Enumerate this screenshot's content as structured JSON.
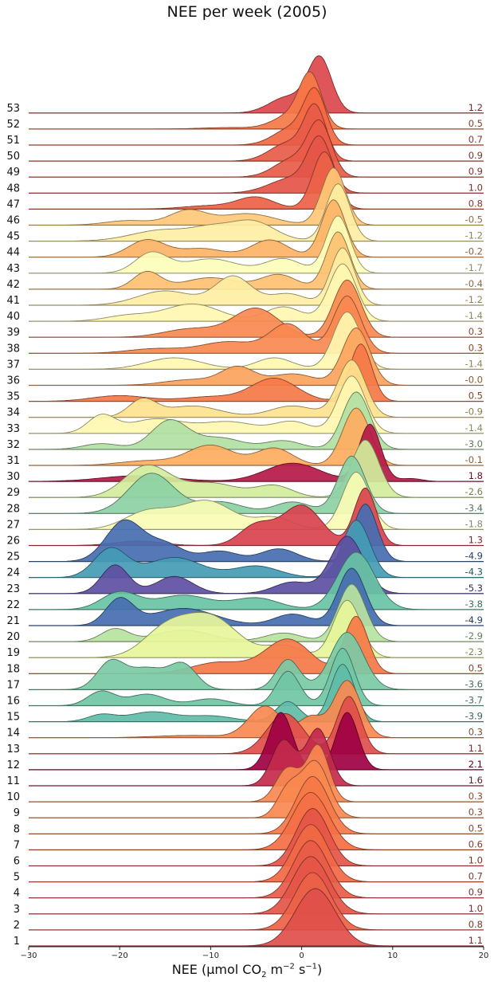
{
  "chart_data": {
    "type": "area",
    "title": "NEE per week (2005)",
    "xlabel_parts": {
      "a": "NEE (μmol CO",
      "b": "2",
      "c": " m",
      "d": "−2",
      "e": " s",
      "f": "−1",
      "g": ")"
    },
    "xlim": [
      -30,
      20
    ],
    "xticks": [
      "−30",
      "−20",
      "−10",
      "0",
      "10",
      "20"
    ],
    "xtick_values": [
      -30,
      -20,
      -10,
      0,
      10,
      20
    ],
    "colorscale": "Spectral",
    "value_range": [
      -5.3,
      2.1
    ],
    "series": [
      {
        "name": "1",
        "mean": "1.1",
        "value": 1.1,
        "peaks": [
          [
            1.5,
            2.2,
            1
          ]
        ]
      },
      {
        "name": "2",
        "mean": "0.8",
        "value": 0.8,
        "peaks": [
          [
            1.2,
            2.0,
            1
          ]
        ]
      },
      {
        "name": "3",
        "mean": "1.0",
        "value": 1.0,
        "peaks": [
          [
            1.0,
            2.0,
            1
          ]
        ]
      },
      {
        "name": "4",
        "mean": "0.9",
        "value": 0.9,
        "peaks": [
          [
            1.0,
            1.9,
            1
          ]
        ]
      },
      {
        "name": "5",
        "mean": "0.7",
        "value": 0.7,
        "peaks": [
          [
            1.0,
            1.9,
            1
          ]
        ]
      },
      {
        "name": "6",
        "mean": "1.0",
        "value": 1.0,
        "peaks": [
          [
            1.2,
            1.8,
            1
          ]
        ]
      },
      {
        "name": "7",
        "mean": "0.6",
        "value": 0.6,
        "peaks": [
          [
            1.0,
            2.0,
            1
          ]
        ]
      },
      {
        "name": "8",
        "mean": "0.5",
        "value": 0.5,
        "peaks": [
          [
            1.2,
            1.8,
            1
          ]
        ]
      },
      {
        "name": "9",
        "mean": "0.3",
        "value": 0.3,
        "peaks": [
          [
            1.5,
            1.5,
            1
          ],
          [
            -1.5,
            1.2,
            0.5
          ]
        ]
      },
      {
        "name": "10",
        "mean": "0.3",
        "value": 0.3,
        "peaks": [
          [
            1.8,
            1.2,
            1
          ],
          [
            -1.5,
            1.3,
            0.6
          ]
        ]
      },
      {
        "name": "11",
        "mean": "1.6",
        "value": 1.6,
        "peaks": [
          [
            1.8,
            1.3,
            1
          ],
          [
            -2.0,
            1.3,
            0.8
          ]
        ]
      },
      {
        "name": "12",
        "mean": "2.1",
        "value": 2.1,
        "peaks": [
          [
            5.0,
            1.2,
            1
          ],
          [
            -2.3,
            1.3,
            1
          ]
        ]
      },
      {
        "name": "13",
        "mean": "1.1",
        "value": 1.1,
        "peaks": [
          [
            5.2,
            1.3,
            1
          ],
          [
            -1.8,
            2.0,
            0.7
          ]
        ]
      },
      {
        "name": "14",
        "mean": "0.3",
        "value": 0.3,
        "peaks": [
          [
            5.0,
            1.5,
            1
          ],
          [
            -4.0,
            1.8,
            0.55
          ],
          [
            1.0,
            1.3,
            0.35
          ],
          [
            -12.0,
            4.0,
            0.04
          ]
        ]
      },
      {
        "name": "15",
        "mean": "-3.9",
        "value": -3.9,
        "peaks": [
          [
            4.5,
            1.3,
            1
          ],
          [
            -1.5,
            1.3,
            0.35
          ],
          [
            -16.5,
            2.5,
            0.17
          ],
          [
            -22.0,
            1.5,
            0.12
          ],
          [
            -10.0,
            2.5,
            0.1
          ]
        ]
      },
      {
        "name": "16",
        "mean": "-3.7",
        "value": -3.7,
        "peaks": [
          [
            4.5,
            1.3,
            1
          ],
          [
            -1.5,
            1.3,
            0.6
          ],
          [
            -22.0,
            1.5,
            0.25
          ],
          [
            -17.0,
            2.0,
            0.2
          ],
          [
            -10.0,
            2.0,
            0.12
          ]
        ]
      },
      {
        "name": "17",
        "mean": "-3.6",
        "value": -3.6,
        "peaks": [
          [
            5.0,
            1.8,
            0.95
          ],
          [
            -1.5,
            1.3,
            0.5
          ],
          [
            -21.0,
            1.5,
            0.45
          ],
          [
            -13.0,
            1.5,
            0.4
          ],
          [
            -17.0,
            2.0,
            0.35
          ]
        ]
      },
      {
        "name": "18",
        "mean": "0.5",
        "value": 0.5,
        "peaks": [
          [
            6.0,
            1.3,
            1
          ],
          [
            -1.5,
            2.5,
            0.6
          ],
          [
            -9.0,
            3.0,
            0.2
          ]
        ]
      },
      {
        "name": "19",
        "mean": "-2.3",
        "value": -2.3,
        "peaks": [
          [
            5.0,
            1.5,
            1
          ],
          [
            -10.0,
            3.0,
            0.7
          ],
          [
            -15.0,
            2.5,
            0.45
          ],
          [
            -2.0,
            2.0,
            0.2
          ]
        ]
      },
      {
        "name": "20",
        "mean": "-2.9",
        "value": -2.9,
        "peaks": [
          [
            5.5,
            1.5,
            1
          ],
          [
            -20.5,
            1.5,
            0.22
          ],
          [
            -13.0,
            3.0,
            0.2
          ],
          [
            -2.0,
            2.0,
            0.15
          ]
        ]
      },
      {
        "name": "21",
        "mean": "-4.9",
        "value": -4.9,
        "peaks": [
          [
            5.5,
            1.5,
            1
          ],
          [
            -20.0,
            1.5,
            0.45
          ],
          [
            -13.0,
            3.5,
            0.3
          ],
          [
            -1.0,
            2.0,
            0.2
          ]
        ]
      },
      {
        "name": "22",
        "mean": "-3.8",
        "value": -3.8,
        "peaks": [
          [
            6.0,
            2.0,
            1
          ],
          [
            -20.0,
            2.0,
            0.3
          ],
          [
            -13.0,
            3.0,
            0.25
          ],
          [
            -5.0,
            2.5,
            0.2
          ]
        ]
      },
      {
        "name": "23",
        "mean": "-5.3",
        "value": -5.3,
        "peaks": [
          [
            5.0,
            1.8,
            1
          ],
          [
            -20.5,
            1.5,
            0.5
          ],
          [
            -14.0,
            2.0,
            0.3
          ],
          [
            -1.0,
            2.0,
            0.2
          ]
        ]
      },
      {
        "name": "24",
        "mean": "-4.3",
        "value": -4.3,
        "peaks": [
          [
            6.0,
            1.5,
            1
          ],
          [
            -21.0,
            1.8,
            0.5
          ],
          [
            -14.0,
            3.0,
            0.35
          ],
          [
            -5.0,
            2.5,
            0.2
          ]
        ]
      },
      {
        "name": "25",
        "mean": "-4.9",
        "value": -4.9,
        "peaks": [
          [
            7.0,
            1.3,
            1
          ],
          [
            -19.5,
            2.0,
            0.7
          ],
          [
            -15.0,
            2.0,
            0.3
          ],
          [
            -9.0,
            2.0,
            0.18
          ],
          [
            -2.5,
            2.0,
            0.22
          ]
        ]
      },
      {
        "name": "26",
        "mean": "1.3",
        "value": 1.3,
        "peaks": [
          [
            7.0,
            1.2,
            1
          ],
          [
            0.0,
            2.2,
            0.7
          ],
          [
            -5.0,
            1.8,
            0.35
          ],
          [
            -18.0,
            2.5,
            0.08
          ]
        ]
      },
      {
        "name": "27",
        "mean": "-1.8",
        "value": -1.8,
        "peaks": [
          [
            6.0,
            1.5,
            1
          ],
          [
            -10.5,
            3.0,
            0.5
          ],
          [
            -17.0,
            2.5,
            0.3
          ],
          [
            -3.0,
            2.0,
            0.2
          ]
        ]
      },
      {
        "name": "28",
        "mean": "-3.4",
        "value": -3.4,
        "peaks": [
          [
            5.5,
            1.5,
            1
          ],
          [
            -16.5,
            2.5,
            0.7
          ],
          [
            -9.0,
            2.5,
            0.2
          ],
          [
            -1.0,
            2.0,
            0.2
          ]
        ]
      },
      {
        "name": "29",
        "mean": "-2.6",
        "value": -2.6,
        "peaks": [
          [
            7.0,
            1.5,
            1
          ],
          [
            -17.0,
            2.5,
            0.55
          ],
          [
            -10.0,
            3.0,
            0.25
          ],
          [
            -3.0,
            2.0,
            0.2
          ]
        ]
      },
      {
        "name": "30",
        "mean": "1.8",
        "value": 1.8,
        "peaks": [
          [
            7.5,
            1.2,
            1
          ],
          [
            -1.0,
            3.0,
            0.32
          ],
          [
            -18.0,
            4.0,
            0.1
          ],
          [
            12.0,
            1.2,
            0.05
          ]
        ]
      },
      {
        "name": "31",
        "mean": "-0.1",
        "value": -0.1,
        "peaks": [
          [
            6.0,
            1.5,
            1
          ],
          [
            -10.0,
            2.5,
            0.35
          ],
          [
            -3.0,
            2.0,
            0.3
          ],
          [
            -17.0,
            3.0,
            0.08
          ]
        ]
      },
      {
        "name": "32",
        "mean": "-3.0",
        "value": -3.0,
        "peaks": [
          [
            6.0,
            1.5,
            1
          ],
          [
            -14.5,
            2.0,
            0.5
          ],
          [
            -9.0,
            2.5,
            0.2
          ],
          [
            -22.0,
            2.0,
            0.1
          ],
          [
            -2.0,
            2.0,
            0.15
          ]
        ]
      },
      {
        "name": "33",
        "mean": "-1.4",
        "value": -1.4,
        "peaks": [
          [
            5.5,
            1.5,
            1
          ],
          [
            -22.0,
            1.5,
            0.3
          ],
          [
            -16.0,
            3.0,
            0.25
          ],
          [
            -8.0,
            3.0,
            0.2
          ],
          [
            -1.0,
            2.0,
            0.2
          ]
        ]
      },
      {
        "name": "34",
        "mean": "-0.9",
        "value": -0.9,
        "peaks": [
          [
            5.5,
            1.5,
            1
          ],
          [
            -17.5,
            1.5,
            0.3
          ],
          [
            -12.0,
            3.0,
            0.2
          ],
          [
            -1.0,
            2.5,
            0.2
          ]
        ]
      },
      {
        "name": "35",
        "mean": "0.5",
        "value": 0.5,
        "peaks": [
          [
            6.5,
            1.2,
            1
          ],
          [
            -3.0,
            2.5,
            0.4
          ],
          [
            -20.0,
            3.0,
            0.1
          ],
          [
            -10.0,
            3.0,
            0.08
          ]
        ]
      },
      {
        "name": "36",
        "mean": "-0.0",
        "value": -0.0,
        "peaks": [
          [
            6.0,
            1.5,
            1
          ],
          [
            -7.0,
            1.8,
            0.3
          ],
          [
            -1.0,
            2.5,
            0.2
          ],
          [
            -12.0,
            3.0,
            0.1
          ]
        ]
      },
      {
        "name": "37",
        "mean": "-1.4",
        "value": -1.4,
        "peaks": [
          [
            5.0,
            1.5,
            1
          ],
          [
            -14.0,
            3.0,
            0.2
          ],
          [
            -3.0,
            2.0,
            0.2
          ]
        ]
      },
      {
        "name": "38",
        "mean": "0.3",
        "value": 0.3,
        "peaks": [
          [
            5.0,
            1.5,
            1
          ],
          [
            -1.5,
            2.0,
            0.5
          ],
          [
            -8.0,
            3.0,
            0.2
          ],
          [
            -16.0,
            3.0,
            0.08
          ]
        ]
      },
      {
        "name": "39",
        "mean": "0.3",
        "value": 0.3,
        "peaks": [
          [
            5.0,
            1.5,
            1
          ],
          [
            -5.0,
            2.5,
            0.5
          ],
          [
            -12.0,
            3.0,
            0.15
          ]
        ]
      },
      {
        "name": "40",
        "mean": "-1.4",
        "value": -1.4,
        "peaks": [
          [
            4.5,
            1.5,
            1
          ],
          [
            -12.0,
            3.0,
            0.3
          ],
          [
            -2.0,
            2.0,
            0.25
          ],
          [
            -19.0,
            2.5,
            0.1
          ]
        ]
      },
      {
        "name": "41",
        "mean": "-1.2",
        "value": -1.2,
        "peaks": [
          [
            4.5,
            1.3,
            1
          ],
          [
            -7.5,
            2.0,
            0.5
          ],
          [
            -15.0,
            3.0,
            0.25
          ],
          [
            -1.5,
            2.0,
            0.2
          ]
        ]
      },
      {
        "name": "42",
        "mean": "-0.4",
        "value": -0.4,
        "peaks": [
          [
            4.0,
            1.3,
            1
          ],
          [
            -17.0,
            1.5,
            0.3
          ],
          [
            -10.0,
            3.0,
            0.2
          ],
          [
            -2.5,
            2.0,
            0.25
          ]
        ]
      },
      {
        "name": "43",
        "mean": "-1.7",
        "value": -1.7,
        "peaks": [
          [
            4.0,
            1.3,
            1
          ],
          [
            -16.5,
            1.8,
            0.35
          ],
          [
            -10.0,
            3.0,
            0.25
          ],
          [
            -2.0,
            2.0,
            0.25
          ]
        ]
      },
      {
        "name": "44",
        "mean": "-0.2",
        "value": -0.2,
        "peaks": [
          [
            3.5,
            1.3,
            1
          ],
          [
            -17.0,
            2.0,
            0.3
          ],
          [
            -3.5,
            2.0,
            0.3
          ],
          [
            -11.0,
            2.5,
            0.15
          ]
        ]
      },
      {
        "name": "45",
        "mean": "-1.2",
        "value": -1.2,
        "peaks": [
          [
            4.0,
            1.3,
            1
          ],
          [
            -5.5,
            2.5,
            0.35
          ],
          [
            -15.0,
            3.5,
            0.2
          ],
          [
            -10.0,
            2.0,
            0.15
          ]
        ]
      },
      {
        "name": "46",
        "mean": "-0.5",
        "value": -0.5,
        "peaks": [
          [
            3.5,
            1.3,
            1
          ],
          [
            -12.5,
            2.0,
            0.25
          ],
          [
            -6.0,
            3.0,
            0.2
          ],
          [
            -19.0,
            2.5,
            0.08
          ]
        ]
      },
      {
        "name": "47",
        "mean": "0.8",
        "value": 0.8,
        "peaks": [
          [
            2.5,
            1.3,
            1
          ],
          [
            -5.0,
            2.0,
            0.2
          ],
          [
            -10.0,
            3.0,
            0.06
          ]
        ]
      },
      {
        "name": "48",
        "mean": "1.0",
        "value": 1.0,
        "peaks": [
          [
            2.0,
            1.3,
            1
          ],
          [
            -1.0,
            2.5,
            0.3
          ]
        ]
      },
      {
        "name": "49",
        "mean": "0.9",
        "value": 0.9,
        "peaks": [
          [
            2.0,
            1.3,
            1
          ],
          [
            -1.0,
            2.0,
            0.35
          ]
        ]
      },
      {
        "name": "50",
        "mean": "0.9",
        "value": 0.9,
        "peaks": [
          [
            1.5,
            1.2,
            1
          ],
          [
            -1.5,
            2.0,
            0.35
          ]
        ]
      },
      {
        "name": "51",
        "mean": "0.7",
        "value": 0.7,
        "peaks": [
          [
            1.5,
            1.2,
            1
          ],
          [
            -1.0,
            2.0,
            0.35
          ]
        ]
      },
      {
        "name": "52",
        "mean": "0.5",
        "value": 0.5,
        "peaks": [
          [
            1.0,
            1.2,
            1
          ],
          [
            -1.0,
            2.0,
            0.3
          ],
          [
            -8.0,
            3.0,
            0.03
          ]
        ]
      },
      {
        "name": "53",
        "mean": "1.2",
        "value": 1.2,
        "peaks": [
          [
            2.0,
            1.3,
            1
          ],
          [
            -1.5,
            2.0,
            0.3
          ]
        ]
      }
    ]
  }
}
